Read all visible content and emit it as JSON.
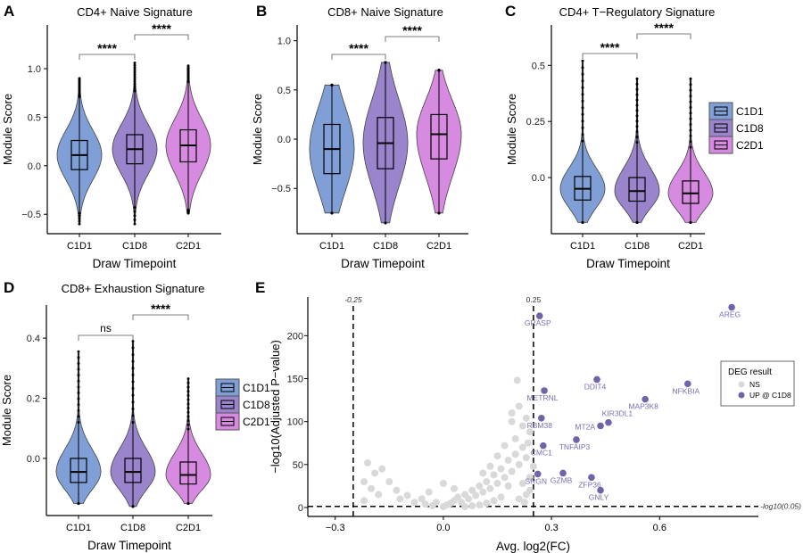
{
  "colors": {
    "C1D1": "#7f9fd6",
    "C1D8": "#9a84cc",
    "C2D1": "#d68ae0",
    "up": "#7262a9",
    "up_label": "#7b6db5",
    "ns": "#d9d9d9"
  },
  "chart_data": [
    {
      "panel": "A",
      "type": "violin",
      "title": "CD4+ Naive Signature",
      "xlabel": "Draw Timepoint",
      "ylabel": "Module Score",
      "categories": [
        "C1D1",
        "C1D8",
        "C2D1"
      ],
      "yticks": [
        -0.5,
        0.0,
        0.5,
        1.0
      ],
      "ytick_labels": [
        "−0.5",
        "0.0",
        "0.5",
        "1.0"
      ],
      "ylim": [
        -0.7,
        1.45
      ],
      "groups": [
        {
          "name": "C1D1",
          "min": -0.6,
          "q1": -0.04,
          "median": 0.11,
          "q3": 0.26,
          "max": 0.9
        },
        {
          "name": "C1D8",
          "min": -0.6,
          "q1": 0.02,
          "median": 0.17,
          "q3": 0.32,
          "max": 1.06
        },
        {
          "name": "C2D1",
          "min": -0.49,
          "q1": 0.04,
          "median": 0.21,
          "q3": 0.37,
          "max": 1.03
        }
      ],
      "comparisons": [
        {
          "pair": [
            "C1D1",
            "C1D8"
          ],
          "label": "****"
        },
        {
          "pair": [
            "C1D8",
            "C2D1"
          ],
          "label": "****"
        }
      ],
      "legend": false
    },
    {
      "panel": "B",
      "type": "violin",
      "title": "CD8+ Naive Signature",
      "xlabel": "Draw Timepoint",
      "ylabel": "Module Score",
      "categories": [
        "C1D1",
        "C1D8",
        "C2D1"
      ],
      "yticks": [
        -0.5,
        0.0,
        0.5,
        1.0
      ],
      "ytick_labels": [
        "−0.5",
        "0.0",
        "0.5",
        "1.0"
      ],
      "ylim": [
        -0.96,
        1.16
      ],
      "groups": [
        {
          "name": "C1D1",
          "min": -0.75,
          "q1": -0.35,
          "median": -0.1,
          "q3": 0.15,
          "max": 0.55
        },
        {
          "name": "C1D8",
          "min": -0.85,
          "q1": -0.3,
          "median": -0.04,
          "q3": 0.22,
          "max": 0.78
        },
        {
          "name": "C2D1",
          "min": -0.75,
          "q1": -0.2,
          "median": 0.05,
          "q3": 0.25,
          "max": 0.7
        }
      ],
      "comparisons": [
        {
          "pair": [
            "C1D1",
            "C1D8"
          ],
          "label": "****"
        },
        {
          "pair": [
            "C1D8",
            "C2D1"
          ],
          "label": "****"
        }
      ],
      "legend": false
    },
    {
      "panel": "C",
      "type": "violin",
      "title": "CD4+ T−Regulatory Signature",
      "xlabel": "Draw Timepoint",
      "ylabel": "Module Score",
      "categories": [
        "C1D1",
        "C1D8",
        "C2D1"
      ],
      "yticks": [
        0.0,
        0.25,
        0.5
      ],
      "ytick_labels": [
        "0.0",
        "0.25",
        "0.5"
      ],
      "ylim": [
        -0.25,
        0.68
      ],
      "groups": [
        {
          "name": "C1D1",
          "min": -0.2,
          "q1": -0.1,
          "median": -0.05,
          "q3": 0.005,
          "max": 0.52
        },
        {
          "name": "C1D8",
          "min": -0.2,
          "q1": -0.105,
          "median": -0.06,
          "q3": 0.0,
          "max": 0.44
        },
        {
          "name": "C2D1",
          "min": -0.2,
          "q1": -0.115,
          "median": -0.07,
          "q3": -0.015,
          "max": 0.44
        }
      ],
      "comparisons": [
        {
          "pair": [
            "C1D1",
            "C1D8"
          ],
          "label": "****"
        },
        {
          "pair": [
            "C1D8",
            "C2D1"
          ],
          "label": "****"
        }
      ],
      "legend": true
    },
    {
      "panel": "D",
      "type": "violin",
      "title": "CD8+ Exhaustion Signature",
      "xlabel": "Draw Timepoint",
      "ylabel": "Module Score",
      "categories": [
        "C1D1",
        "C1D8",
        "C2D1"
      ],
      "yticks": [
        0.0,
        0.2,
        0.4
      ],
      "ytick_labels": [
        "0.0",
        "0.2",
        "0.4"
      ],
      "ylim": [
        -0.19,
        0.51
      ],
      "groups": [
        {
          "name": "C1D1",
          "min": -0.15,
          "q1": -0.08,
          "median": -0.045,
          "q3": 0.0,
          "max": 0.355
        },
        {
          "name": "C1D8",
          "min": -0.16,
          "q1": -0.08,
          "median": -0.045,
          "q3": 0.0,
          "max": 0.39
        },
        {
          "name": "C2D1",
          "min": -0.15,
          "q1": -0.085,
          "median": -0.055,
          "q3": -0.012,
          "max": 0.265
        }
      ],
      "comparisons": [
        {
          "pair": [
            "C1D1",
            "C1D8"
          ],
          "label": "ns"
        },
        {
          "pair": [
            "C1D8",
            "C2D1"
          ],
          "label": "****"
        }
      ],
      "legend": true
    },
    {
      "panel": "E",
      "type": "scatter",
      "title": "",
      "xlabel": "Avg. log2(FC)",
      "ylabel": "−log10(Adjusted P−value)",
      "xticks": [
        -0.3,
        0.0,
        0.3,
        0.6
      ],
      "xtick_labels": [
        "−0.3",
        "0.0",
        "0.3",
        "0.6"
      ],
      "yticks": [
        0,
        50,
        100,
        150,
        200
      ],
      "ytick_labels": [
        "0",
        "50",
        "100",
        "150",
        "200"
      ],
      "xlim": [
        -0.376,
        0.874
      ],
      "ylim": [
        -10.4,
        245
      ],
      "thresholds": {
        "x": [
          -0.25,
          0.25
        ],
        "x_labels": [
          "-0.25",
          "0.25"
        ],
        "y": 1.3,
        "y_label": "-log10(0.05)"
      },
      "legend": {
        "title": "DEG result",
        "entries": [
          "NS",
          "UP @ C1D8"
        ]
      },
      "up_points": [
        {
          "gene": "AREG",
          "x": 0.8,
          "y": 233
        },
        {
          "gene": "GRASP",
          "x": 0.267,
          "y": 223
        },
        {
          "gene": "DDIT4",
          "x": 0.426,
          "y": 149
        },
        {
          "gene": "NFKBIA",
          "x": 0.678,
          "y": 144
        },
        {
          "gene": "METRNL",
          "x": 0.28,
          "y": 136
        },
        {
          "gene": "MAP3K8",
          "x": 0.56,
          "y": 126
        },
        {
          "gene": "RBM38",
          "x": 0.272,
          "y": 104
        },
        {
          "gene": "KIR3DL1",
          "x": 0.458,
          "y": 99
        },
        {
          "gene": "MT2A",
          "x": 0.436,
          "y": 95
        },
        {
          "gene": "TNFAIP3",
          "x": 0.369,
          "y": 79
        },
        {
          "gene": "CMC1",
          "x": 0.277,
          "y": 72
        },
        {
          "gene": "GZMB",
          "x": 0.332,
          "y": 40
        },
        {
          "gene": "SRGN",
          "x": 0.262,
          "y": 39
        },
        {
          "gene": "ZFP36",
          "x": 0.411,
          "y": 35
        },
        {
          "gene": "GNLY",
          "x": 0.436,
          "y": 20
        }
      ],
      "ns_points": [
        [
          -0.21,
          52
        ],
        [
          -0.19,
          40
        ],
        [
          -0.17,
          45
        ],
        [
          -0.22,
          30
        ],
        [
          -0.2,
          22
        ],
        [
          -0.18,
          15
        ],
        [
          -0.15,
          30
        ],
        [
          -0.13,
          20
        ],
        [
          -0.12,
          10
        ],
        [
          -0.1,
          14
        ],
        [
          -0.22,
          8
        ],
        [
          -0.08,
          6
        ],
        [
          -0.06,
          10
        ],
        [
          -0.05,
          4
        ],
        [
          -0.03,
          2
        ],
        [
          -0.02,
          6
        ],
        [
          0.0,
          1
        ],
        [
          0.01,
          3
        ],
        [
          0.02,
          5
        ],
        [
          0.03,
          8
        ],
        [
          0.04,
          12
        ],
        [
          0.05,
          6
        ],
        [
          0.06,
          15
        ],
        [
          0.07,
          10
        ],
        [
          0.08,
          20
        ],
        [
          0.09,
          14
        ],
        [
          0.1,
          25
        ],
        [
          0.11,
          18
        ],
        [
          0.12,
          30
        ],
        [
          0.13,
          22
        ],
        [
          0.14,
          38
        ],
        [
          0.15,
          28
        ],
        [
          0.16,
          45
        ],
        [
          0.17,
          35
        ],
        [
          0.18,
          55
        ],
        [
          0.19,
          42
        ],
        [
          0.2,
          62
        ],
        [
          0.21,
          50
        ],
        [
          0.22,
          70
        ],
        [
          0.2,
          80
        ],
        [
          0.23,
          58
        ],
        [
          0.24,
          88
        ],
        [
          0.22,
          95
        ],
        [
          0.23,
          104
        ],
        [
          0.21,
          118
        ],
        [
          0.19,
          100
        ],
        [
          0.17,
          72
        ],
        [
          0.15,
          60
        ],
        [
          0.13,
          48
        ],
        [
          0.11,
          40
        ],
        [
          0.24,
          20
        ],
        [
          0.23,
          15
        ],
        [
          0.22,
          28
        ],
        [
          0.21,
          10
        ],
        [
          0.24,
          35
        ],
        [
          0.225,
          6
        ],
        [
          0.18,
          25
        ],
        [
          0.16,
          12
        ],
        [
          0.14,
          8
        ],
        [
          0.12,
          5
        ],
        [
          0.1,
          3
        ],
        [
          0.08,
          2
        ],
        [
          0.06,
          1
        ],
        [
          0.205,
          148
        ],
        [
          0.0,
          28
        ],
        [
          0.03,
          22
        ],
        [
          -0.04,
          18
        ],
        [
          0.19,
          110
        ],
        [
          0.235,
          75
        ],
        [
          0.25,
          48
        ]
      ]
    }
  ]
}
